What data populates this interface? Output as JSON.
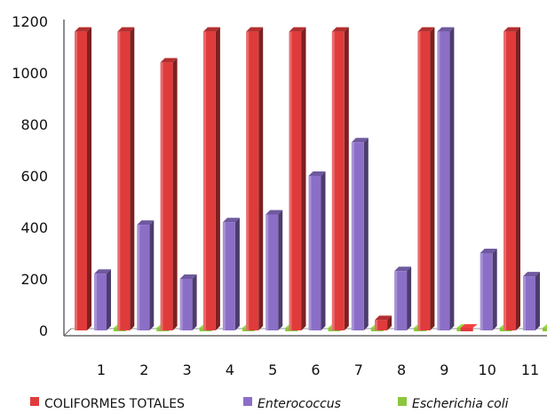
{
  "chart_data": {
    "type": "bar",
    "title": "",
    "xlabel": "",
    "ylabel": "",
    "ylim": [
      0,
      1200
    ],
    "yticks": [
      0,
      200,
      400,
      600,
      800,
      1000,
      1200
    ],
    "categories": [
      "1",
      "2",
      "3",
      "4",
      "5",
      "6",
      "7",
      "8",
      "9",
      "10",
      "11"
    ],
    "grid": false,
    "legend_position": "bottom",
    "series": [
      {
        "name": "COLIFORMES TOTALES",
        "italic": false,
        "color": "#e03b3b",
        "values": [
          1160,
          1160,
          1040,
          1160,
          1160,
          1160,
          1160,
          40,
          1160,
          0,
          1160
        ]
      },
      {
        "name": "Enterococcus",
        "italic": true,
        "color": "#8b6fc7",
        "values": [
          220,
          410,
          200,
          420,
          450,
          600,
          730,
          230,
          1160,
          300,
          210
        ]
      },
      {
        "name": "Escherichia coli",
        "italic": true,
        "color": "#8cc63f",
        "values": [
          0,
          0,
          0,
          0,
          0,
          0,
          0,
          0,
          0,
          0,
          0
        ]
      }
    ]
  }
}
